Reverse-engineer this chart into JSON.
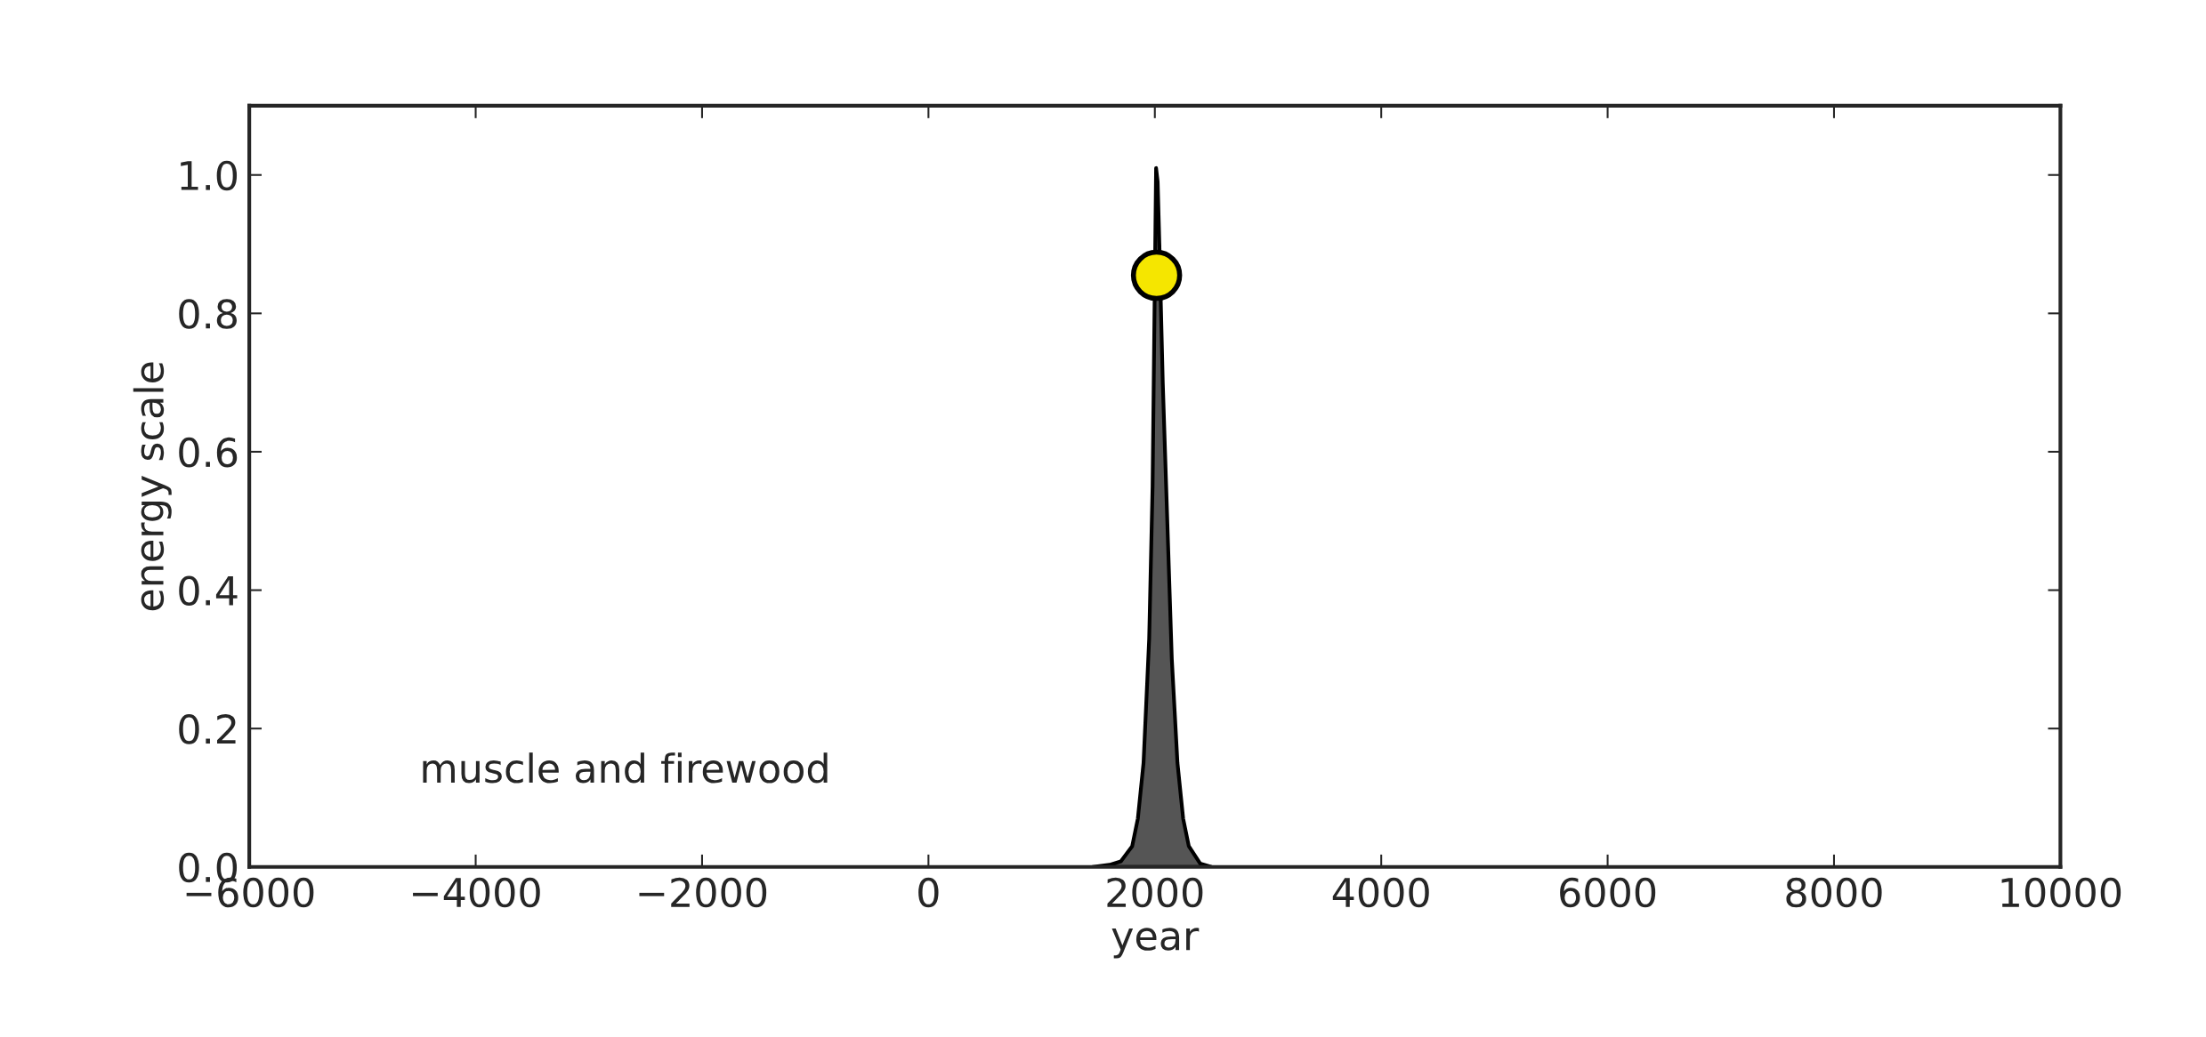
{
  "chart_data": {
    "type": "area",
    "xlabel": "year",
    "ylabel": "energy scale",
    "annotations": [
      "muscle and firewood"
    ],
    "x": [
      1450,
      1600,
      1700,
      1800,
      1850,
      1900,
      1950,
      1980,
      2011,
      2025,
      2040,
      2070,
      2100,
      2150,
      2200,
      2250,
      2300,
      2400,
      2500
    ],
    "series": [
      {
        "color": "#555555",
        "values": [
          0,
          0.003,
          0.008,
          0.03,
          0.07,
          0.15,
          0.33,
          0.55,
          1.01,
          0.99,
          0.9,
          0.7,
          0.55,
          0.3,
          0.15,
          0.07,
          0.03,
          0.005,
          0
        ]
      },
      {
        "type": "scatter",
        "color": "#f5e600",
        "x": [
          2015
        ],
        "values": [
          0.855
        ],
        "marker": "circle"
      }
    ],
    "xlim": [
      -6000,
      10000
    ],
    "ylim": [
      0,
      1.1
    ],
    "xticks": [
      {
        "value": -6000,
        "label": "−6000"
      },
      {
        "value": -4000,
        "label": "−4000"
      },
      {
        "value": -2000,
        "label": "−2000"
      },
      0,
      2000,
      4000,
      6000,
      8000,
      10000
    ],
    "yticks": [
      {
        "value": 0,
        "label": "0.0"
      },
      {
        "value": 0.2,
        "label": "0.2"
      },
      {
        "value": 0.4,
        "label": "0.4"
      },
      {
        "value": 0.6,
        "label": "0.6"
      },
      {
        "value": 0.8,
        "label": "0.8"
      },
      {
        "value": 1.0,
        "label": "1.0"
      }
    ],
    "grid": false,
    "legend": false
  }
}
